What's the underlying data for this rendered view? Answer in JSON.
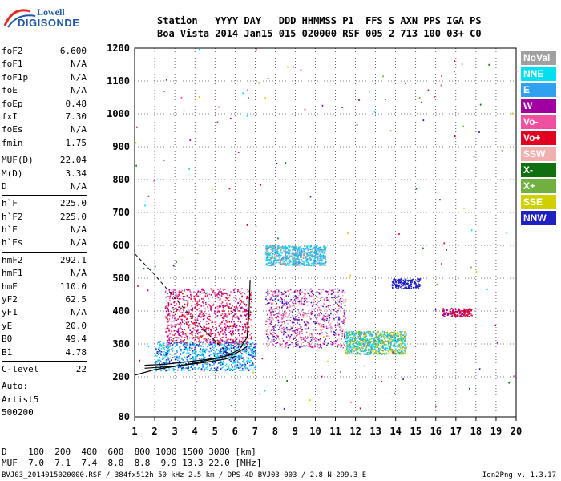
{
  "logo": {
    "top": "Lowell",
    "bottom": "DIGISONDE"
  },
  "header": {
    "labels": "Station   YYYY DAY   DDD HHMMSS P1  FFS S AXN PPS IGA PS",
    "values": "Boa Vista 2014 Jan15 015 020000 RSF 005 2 713 100 03+ C0"
  },
  "params": [
    {
      "label": "foF2",
      "value": "6.600"
    },
    {
      "label": "foF1",
      "value": "N/A"
    },
    {
      "label": "foF1p",
      "value": "N/A"
    },
    {
      "label": "foE",
      "value": "N/A"
    },
    {
      "label": "foEp",
      "value": "0.48"
    },
    {
      "label": "fxI",
      "value": "7.30"
    },
    {
      "label": "foEs",
      "value": "N/A"
    },
    {
      "label": "fmin",
      "value": "1.75"
    },
    {
      "sep": true
    },
    {
      "label": "MUF(D)",
      "value": "22.04"
    },
    {
      "label": "M(D)",
      "value": "3.34"
    },
    {
      "label": "D",
      "value": "N/A"
    },
    {
      "sep": true
    },
    {
      "label": "h`F",
      "value": "225.0"
    },
    {
      "label": "h`F2",
      "value": "225.0"
    },
    {
      "label": "h`E",
      "value": "N/A"
    },
    {
      "label": "h`Es",
      "value": "N/A"
    },
    {
      "sep": true
    },
    {
      "label": "hmF2",
      "value": "292.1"
    },
    {
      "label": "hmF1",
      "value": "N/A"
    },
    {
      "label": "hmE",
      "value": "110.0"
    },
    {
      "label": "yF2",
      "value": "62.5"
    },
    {
      "label": "yF1",
      "value": "N/A"
    },
    {
      "label": "yE",
      "value": "20.0"
    },
    {
      "label": "B0",
      "value": "49.4"
    },
    {
      "label": "B1",
      "value": "4.78"
    },
    {
      "sep": true
    },
    {
      "label": "C-level",
      "value": "22"
    },
    {
      "sep": true
    },
    {
      "label": "Auto:",
      "value": ""
    },
    {
      "label": "Artist5",
      "value": ""
    },
    {
      "label": "500200",
      "value": ""
    }
  ],
  "legend": [
    {
      "label": "NoVal",
      "color": "#a0a0a0"
    },
    {
      "label": "NNE",
      "color": "#00e0f0"
    },
    {
      "label": "E",
      "color": "#30a0f0"
    },
    {
      "label": "W",
      "color": "#a000a0"
    },
    {
      "label": "Vo-",
      "color": "#f050a0"
    },
    {
      "label": "Vo+",
      "color": "#e00020"
    },
    {
      "label": "SSW",
      "color": "#f0b0b0"
    },
    {
      "label": "X-",
      "color": "#107010"
    },
    {
      "label": "X+",
      "color": "#70b040"
    },
    {
      "label": "SSE",
      "color": "#d0d000"
    },
    {
      "label": "NNW",
      "color": "#2020c0"
    }
  ],
  "dmuf": {
    "d_line": "D    100  200  400  600  800 1000 1500 3000 [km]",
    "muf_line": "MUF  7.0  7.1  7.4  8.0  8.8  9.9 13.3 22.0 [MHz]"
  },
  "footer": {
    "left": "BVJ03_2014015020000.RSF / 384fx512h 50 kHz 2.5 km / DPS-4D BVJ03 003 / 2.8 N 299.3 E",
    "right": "Ion2Png v. 1.3.17"
  },
  "chart_data": {
    "type": "scatter",
    "x_ticks": [
      "1",
      "2",
      "3",
      "4",
      "5",
      "6",
      "7",
      "8",
      "9",
      "10",
      "11",
      "12",
      "13",
      "14",
      "15",
      "16",
      "17",
      "18",
      "19",
      "20"
    ],
    "y_ticks": [
      "80",
      "200",
      "300",
      "400",
      "500",
      "600",
      "700",
      "800",
      "900",
      "1000",
      "1100",
      "1200"
    ],
    "xlim": [
      1,
      20
    ],
    "ylim": [
      80,
      1200
    ],
    "grid": true,
    "legend_position": "right",
    "trace_profile": [
      [
        1.0,
        205
      ],
      [
        2.0,
        222
      ],
      [
        3.0,
        232
      ],
      [
        4.0,
        242
      ],
      [
        5.0,
        255
      ],
      [
        6.0,
        270
      ],
      [
        6.6,
        292
      ]
    ],
    "trace_o": [
      [
        1.5,
        235
      ],
      [
        2.5,
        238
      ],
      [
        3.5,
        245
      ],
      [
        4.5,
        252
      ],
      [
        5.5,
        262
      ],
      [
        6.2,
        282
      ],
      [
        6.6,
        320
      ],
      [
        6.7,
        400
      ],
      [
        6.75,
        495
      ]
    ],
    "trace_x": [
      [
        1.5,
        226
      ],
      [
        2.5,
        230
      ],
      [
        3.5,
        236
      ],
      [
        4.5,
        244
      ],
      [
        5.5,
        254
      ],
      [
        6.0,
        262
      ]
    ],
    "trace_dashed": [
      [
        1.0,
        575
      ],
      [
        2.0,
        510
      ],
      [
        3.0,
        440
      ],
      [
        4.0,
        370
      ],
      [
        5.0,
        310
      ],
      [
        5.8,
        262
      ]
    ],
    "echo_clusters": [
      {
        "x": [
          2.0,
          7.0
        ],
        "y": [
          220,
          310
        ],
        "colors": [
          "#00e0f0",
          "#30a0f0",
          "#2020c0"
        ]
      },
      {
        "x": [
          2.5,
          6.8
        ],
        "y": [
          300,
          470
        ],
        "colors": [
          "#a000a0",
          "#f050a0",
          "#e00020"
        ]
      },
      {
        "x": [
          7.5,
          11.5
        ],
        "y": [
          290,
          470
        ],
        "colors": [
          "#a000a0",
          "#f050a0",
          "#2020c0",
          "#f0b0b0"
        ]
      },
      {
        "x": [
          11.5,
          14.5
        ],
        "y": [
          270,
          340
        ],
        "colors": [
          "#00e0f0",
          "#d0d000",
          "#70b040",
          "#30a0f0"
        ]
      },
      {
        "x": [
          13.8,
          15.2
        ],
        "y": [
          470,
          500
        ],
        "colors": [
          "#2020c0"
        ]
      },
      {
        "x": [
          16.3,
          17.8
        ],
        "y": [
          385,
          410
        ],
        "colors": [
          "#e00020",
          "#a000a0"
        ]
      },
      {
        "x": [
          7.5,
          10.5
        ],
        "y": [
          540,
          600
        ],
        "colors": [
          "#00e0f0",
          "#a0a0a0",
          "#30a0f0"
        ]
      }
    ]
  }
}
